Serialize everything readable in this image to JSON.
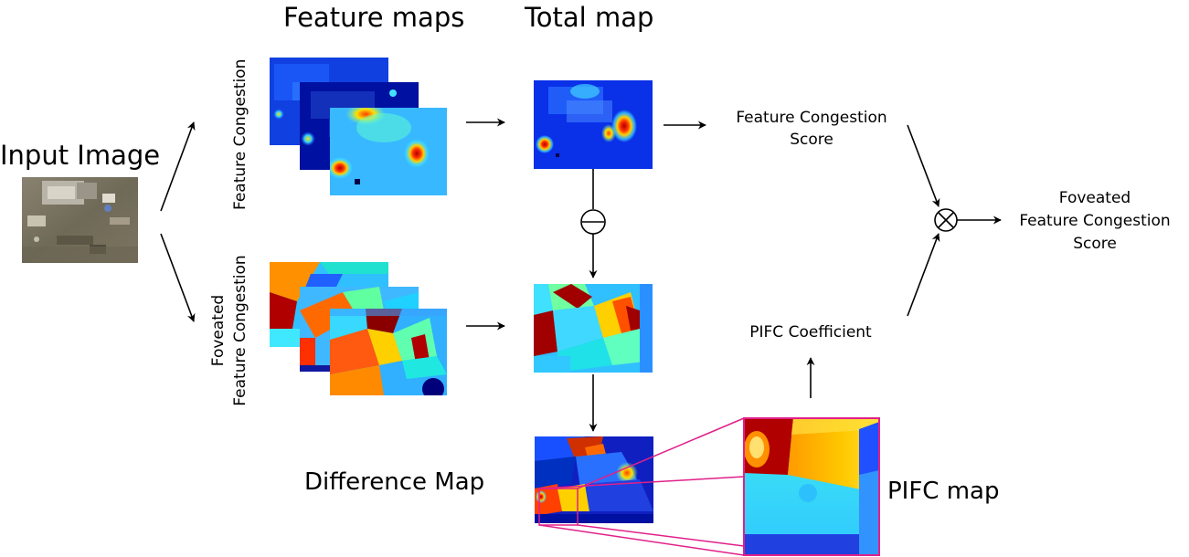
{
  "headers": {
    "feature_maps": "Feature maps",
    "total_map": "Total map"
  },
  "input": {
    "label": "Input Image"
  },
  "branches": {
    "fc_label": "Feature Congestion",
    "ffc_label_line1": "Foveated",
    "ffc_label_line2": "Feature Congestion"
  },
  "outputs": {
    "fc_score_line1": "Feature Congestion",
    "fc_score_line2": "Score",
    "ffc_score_line1": "Foveated",
    "ffc_score_line2": "Feature Congestion",
    "ffc_score_line3": "Score",
    "pifc_coefficient": "PIFC Coefficient"
  },
  "maps": {
    "difference_map": "Difference Map",
    "pifc_map": "PIFC map"
  },
  "colors": {
    "arrow": "#000000",
    "zoom_lines": "#e0208a",
    "jet_dark_blue": "#00008f",
    "jet_blue": "#2050ff",
    "jet_cyan": "#30d8ff",
    "jet_green": "#80ff80",
    "jet_yellow": "#ffd000",
    "jet_orange": "#ff6010",
    "jet_red": "#b00000"
  },
  "icons": {
    "subtract": "circle-minus-icon",
    "multiply": "circle-times-icon"
  }
}
